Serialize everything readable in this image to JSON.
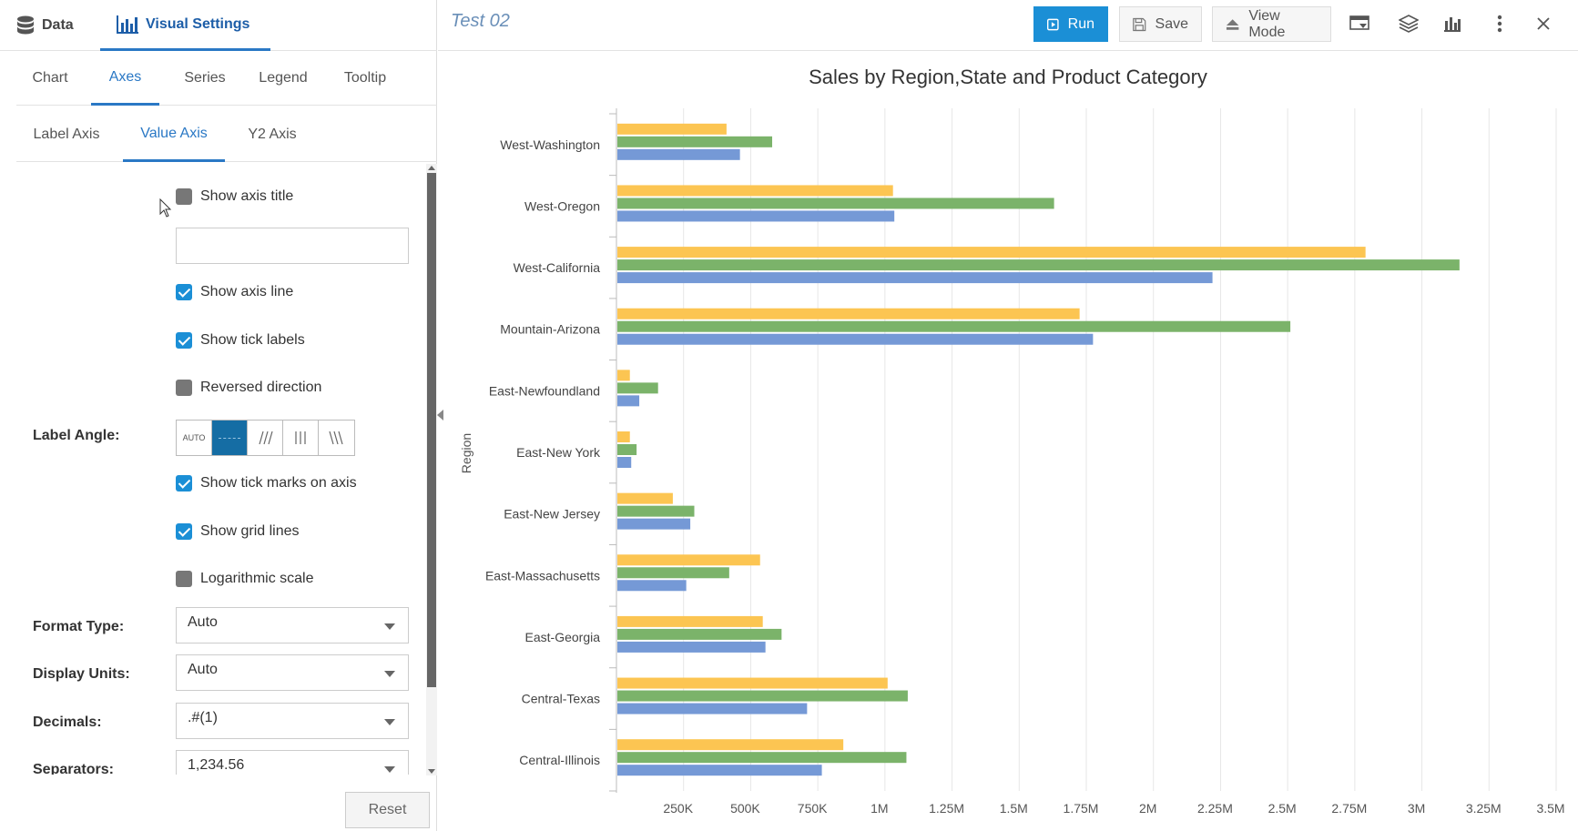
{
  "left_panel": {
    "top_tabs": {
      "data": "Data",
      "visual_settings": "Visual Settings"
    },
    "sub_tabs": [
      "Chart",
      "Axes",
      "Series",
      "Legend",
      "Tooltip"
    ],
    "axis_tabs": [
      "Label Axis",
      "Value Axis",
      "Y2 Axis"
    ],
    "settings": {
      "show_axis_title": {
        "label": "Show axis title",
        "checked": false
      },
      "axis_title_value": "",
      "show_axis_line": {
        "label": "Show axis line",
        "checked": true
      },
      "show_tick_labels": {
        "label": "Show tick labels",
        "checked": true
      },
      "reversed_direction": {
        "label": "Reversed direction",
        "checked": false
      },
      "label_angle": {
        "label": "Label Angle:",
        "options": [
          "AUTO",
          "—",
          "///",
          "|||",
          "\\\\\\"
        ],
        "selected": 1
      },
      "show_tick_marks": {
        "label": "Show tick marks on axis",
        "checked": true
      },
      "show_grid_lines": {
        "label": "Show grid lines",
        "checked": true
      },
      "logarithmic_scale": {
        "label": "Logarithmic scale",
        "checked": false
      },
      "format_type": {
        "label": "Format Type:",
        "value": "Auto"
      },
      "display_units": {
        "label": "Display Units:",
        "value": "Auto"
      },
      "decimals": {
        "label": "Decimals:",
        "value": ".#(1)"
      },
      "separators": {
        "label": "Separators:",
        "value": "1,234.56"
      }
    },
    "reset_label": "Reset"
  },
  "toolbar": {
    "doc_title": "Test 02",
    "run": "Run",
    "save": "Save",
    "view_mode": "View Mode",
    "icons": [
      "filter-panel-icon",
      "layers-icon",
      "chart-type-icon",
      "more-vertical-icon",
      "close-icon"
    ]
  },
  "colors": {
    "accent": "#1b8fd6",
    "series": [
      "#fcc552",
      "#7bb36a",
      "#7599d6"
    ]
  },
  "chart_data": {
    "type": "bar",
    "orientation": "horizontal",
    "title": "Sales by Region,State and Product Category",
    "ylabel": "Region",
    "xlabel": "",
    "categories": [
      "West-Washington",
      "West-Oregon",
      "West-California",
      "Mountain-Arizona",
      "East-Newfoundland",
      "East-New York",
      "East-New Jersey",
      "East-Massachusetts",
      "East-Georgia",
      "Central-Texas",
      "Central-Illinois"
    ],
    "series": [
      {
        "values": [
          410000,
          1030000,
          2790000,
          1725000,
          50000,
          50000,
          210000,
          535000,
          545000,
          1010000,
          845000
        ]
      },
      {
        "values": [
          580000,
          1630000,
          3140000,
          2510000,
          155000,
          75000,
          290000,
          420000,
          615000,
          1085000,
          1080000
        ]
      },
      {
        "values": [
          460000,
          1035000,
          2220000,
          1775000,
          85000,
          55000,
          275000,
          260000,
          555000,
          710000,
          765000
        ]
      }
    ],
    "xlim": [
      0,
      3500000
    ],
    "xticks": [
      "250K",
      "500K",
      "750K",
      "1M",
      "1.25M",
      "1.5M",
      "1.75M",
      "2M",
      "2.25M",
      "2.5M",
      "2.75M",
      "3M",
      "3.25M",
      "3.5M"
    ],
    "grid": true
  }
}
